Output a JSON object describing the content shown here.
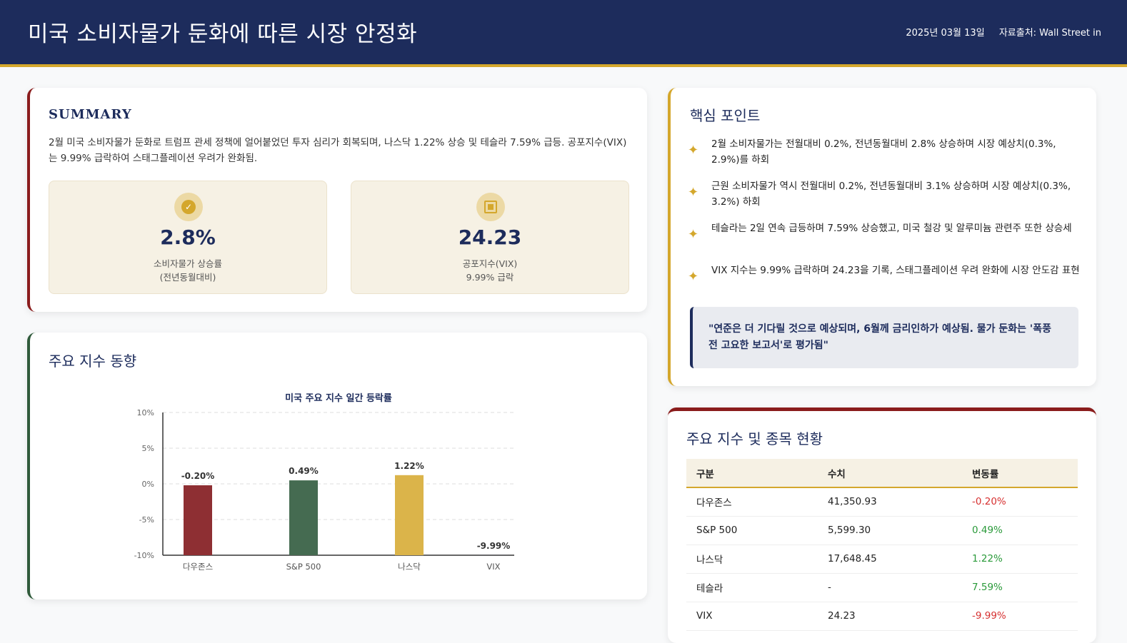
{
  "header": {
    "title": "미국 소비자물가 둔화에 따른 시장 안정화",
    "date": "2025년 03월 13일",
    "source": "자료출처: Wall Street in"
  },
  "summary": {
    "title": "SUMMARY",
    "text": "2월 미국 소비자물가 둔화로 트럼프 관세 정책에 얼어붙었던 투자 심리가 회복되며, 나스닥 1.22% 상승 및 테슬라 7.59% 급등. 공포지수(VIX)는 9.99% 급락하여 스태그플레이션 우려가 완화됨.",
    "stats": [
      {
        "value": "2.8%",
        "label_line1": "소비자물가 상승률",
        "label_line2": "(전년동월대비)",
        "icon": "check-circle-icon"
      },
      {
        "value": "24.23",
        "label_line1": "공포지수(VIX)",
        "label_line2": "9.99% 급락",
        "icon": "square-icon"
      }
    ]
  },
  "chart_section": {
    "title": "주요 지수 동향"
  },
  "chart_data": {
    "type": "bar",
    "title": "미국 주요 지수 일간 등락률",
    "categories": [
      "다우존스",
      "S&P 500",
      "나스닥",
      "VIX"
    ],
    "values": [
      -0.2,
      0.49,
      1.22,
      -9.99
    ],
    "value_labels": [
      "-0.20%",
      "0.49%",
      "1.22%",
      "-9.99%"
    ],
    "colors": [
      "#8e2f33",
      "#456b51",
      "#dbb44a",
      "#4c5680"
    ],
    "ylim": [
      -10,
      10
    ],
    "yticks": [
      10,
      5,
      0,
      -5,
      -10
    ],
    "ytick_labels": [
      "10%",
      "5%",
      "0%",
      "-5%",
      "-10%"
    ],
    "grid": true,
    "xlabel": "",
    "ylabel": ""
  },
  "points": {
    "title": "핵심 포인트",
    "items": [
      "2월 소비자물가는 전월대비 0.2%, 전년동월대비 2.8% 상승하며 시장 예상치(0.3%, 2.9%)를 하회",
      "근원 소비자물가 역시 전월대비 0.2%, 전년동월대비 3.1% 상승하며 시장 예상치(0.3%, 3.2%) 하회",
      "테슬라는 2일 연속 급등하며 7.59% 상승했고, 미국 철강 및 알루미늄 관련주 또한 상승세",
      "VIX 지수는 9.99% 급락하며 24.23을 기록, 스태그플레이션 우려 완화에 시장 안도감 표현"
    ],
    "quote": "\"연준은 더 기다릴 것으로 예상되며, 6월께 금리인하가 예상됨. 물가 둔화는 '폭풍 전 고요한 보고서'로 평가됨\""
  },
  "table": {
    "title": "주요 지수 및 종목 현황",
    "headers": [
      "구분",
      "수치",
      "변동률"
    ],
    "rows": [
      {
        "name": "다우존스",
        "value": "41,350.93",
        "change": "-0.20%"
      },
      {
        "name": "S&P 500",
        "value": "5,599.30",
        "change": "0.49%"
      },
      {
        "name": "나스닥",
        "value": "17,648.45",
        "change": "1.22%"
      },
      {
        "name": "테슬라",
        "value": "-",
        "change": "7.59%"
      },
      {
        "name": "VIX",
        "value": "24.23",
        "change": "-9.99%"
      }
    ]
  }
}
